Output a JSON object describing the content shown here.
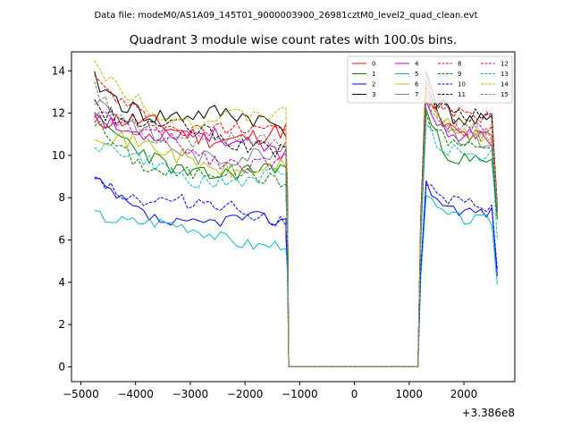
{
  "chart_data": {
    "type": "line",
    "suptitle": "Data file: modeM0/AS1A09_145T01_9000003900_26981cztM0_level2_quad_clean.evt",
    "title": "Quadrant 3 module wise count rates with 100.0s bins.",
    "xlabel": "",
    "ylabel": "",
    "xlim": [
      -5170,
      2930
    ],
    "ylim": [
      -0.7,
      14.9
    ],
    "x_offset_label": "+3.386e8",
    "x_ticks": [
      -5000,
      -4000,
      -3000,
      -2000,
      -1000,
      0,
      1000,
      2000
    ],
    "x_tick_labels": [
      "−5000",
      "−4000",
      "−3000",
      "−2000",
      "−1000",
      "0",
      "1000",
      "2000"
    ],
    "y_ticks": [
      0,
      2,
      4,
      6,
      8,
      10,
      12,
      14
    ],
    "y_tick_labels": [
      "0",
      "2",
      "4",
      "6",
      "8",
      "10",
      "12",
      "14"
    ],
    "bin_seconds": 100,
    "gap_start": -1200,
    "gap_end": 1160,
    "segment_a": {
      "x_start": -4750,
      "x_end": -1250,
      "ramp": [
        -1300,
        -1250,
        -1200
      ]
    },
    "segment_b": {
      "x_start": 1210,
      "x_end": 2560
    },
    "legend": {
      "position": "top-right",
      "columns": 4
    },
    "series": [
      {
        "name": "0",
        "color": "#ff0000",
        "dash": "solid",
        "level_a": 11.0,
        "level_b": 10.8,
        "start": 11.6,
        "peak_b": 13.0,
        "end": 7.5,
        "amp": 0.45,
        "seed": 11
      },
      {
        "name": "1",
        "color": "#008000",
        "dash": "solid",
        "level_a": 9.0,
        "level_b": 9.6,
        "start": 11.4,
        "peak_b": 12.2,
        "end": 7.0,
        "amp": 0.4,
        "seed": 23
      },
      {
        "name": "2",
        "color": "#0000ff",
        "dash": "solid",
        "level_a": 6.6,
        "level_b": 7.3,
        "start": 8.5,
        "peak_b": 8.8,
        "end": 4.3,
        "amp": 0.3,
        "seed": 37
      },
      {
        "name": "3",
        "color": "#000000",
        "dash": "solid",
        "level_a": 11.4,
        "level_b": 11.5,
        "start": 13.5,
        "peak_b": 14.0,
        "end": 7.5,
        "amp": 0.45,
        "seed": 41
      },
      {
        "name": "4",
        "color": "#bf00bf",
        "dash": "solid",
        "level_a": 10.4,
        "level_b": 10.8,
        "start": 12.2,
        "peak_b": 12.6,
        "end": 7.4,
        "amp": 0.4,
        "seed": 53
      },
      {
        "name": "5",
        "color": "#00bfbf",
        "dash": "solid",
        "level_a": 6.0,
        "level_b": 6.9,
        "start": 7.6,
        "peak_b": 8.1,
        "end": 3.9,
        "amp": 0.3,
        "seed": 67
      },
      {
        "name": "6",
        "color": "#bfbf00",
        "dash": "solid",
        "level_a": 9.4,
        "level_b": 10.8,
        "start": 11.2,
        "peak_b": 13.5,
        "end": 7.2,
        "amp": 0.4,
        "seed": 71
      },
      {
        "name": "7",
        "color": "#808080",
        "dash": "solid",
        "level_a": 9.8,
        "level_b": 10.6,
        "start": 12.5,
        "peak_b": 14.0,
        "end": 7.3,
        "amp": 0.4,
        "seed": 83
      },
      {
        "name": "8",
        "color": "#ff0000",
        "dash": "dashed",
        "level_a": 11.0,
        "level_b": 11.8,
        "start": 13.2,
        "peak_b": 13.5,
        "end": 7.6,
        "amp": 0.4,
        "seed": 97
      },
      {
        "name": "9",
        "color": "#008000",
        "dash": "dashed",
        "level_a": 8.6,
        "level_b": 10.4,
        "start": 11.5,
        "peak_b": 12.0,
        "end": 7.0,
        "amp": 0.35,
        "seed": 101
      },
      {
        "name": "10",
        "color": "#0000ff",
        "dash": "dashed",
        "level_a": 7.1,
        "level_b": 7.6,
        "start": 9.4,
        "peak_b": 8.6,
        "end": 4.6,
        "amp": 0.35,
        "seed": 113
      },
      {
        "name": "11",
        "color": "#000000",
        "dash": "dashed",
        "level_a": 10.5,
        "level_b": 11.8,
        "start": 12.7,
        "peak_b": 13.2,
        "end": 7.6,
        "amp": 0.4,
        "seed": 127
      },
      {
        "name": "12",
        "color": "#bf00bf",
        "dash": "dashed",
        "level_a": 9.7,
        "level_b": 11.2,
        "start": 12.2,
        "peak_b": 12.5,
        "end": 7.4,
        "amp": 0.4,
        "seed": 131
      },
      {
        "name": "13",
        "color": "#00bfbf",
        "dash": "dashed",
        "level_a": 8.8,
        "level_b": 10.0,
        "start": 10.4,
        "peak_b": 11.5,
        "end": 6.0,
        "amp": 0.35,
        "seed": 149
      },
      {
        "name": "14",
        "color": "#bfbf00",
        "dash": "dashed",
        "level_a": 11.5,
        "level_b": 11.2,
        "start": 13.8,
        "peak_b": 13.0,
        "end": 7.5,
        "amp": 0.4,
        "seed": 151
      },
      {
        "name": "15",
        "color": "#808080",
        "dash": "dashed",
        "level_a": 10.2,
        "level_b": 11.0,
        "start": 12.9,
        "peak_b": 12.8,
        "end": 7.4,
        "amp": 0.4,
        "seed": 163
      }
    ]
  }
}
